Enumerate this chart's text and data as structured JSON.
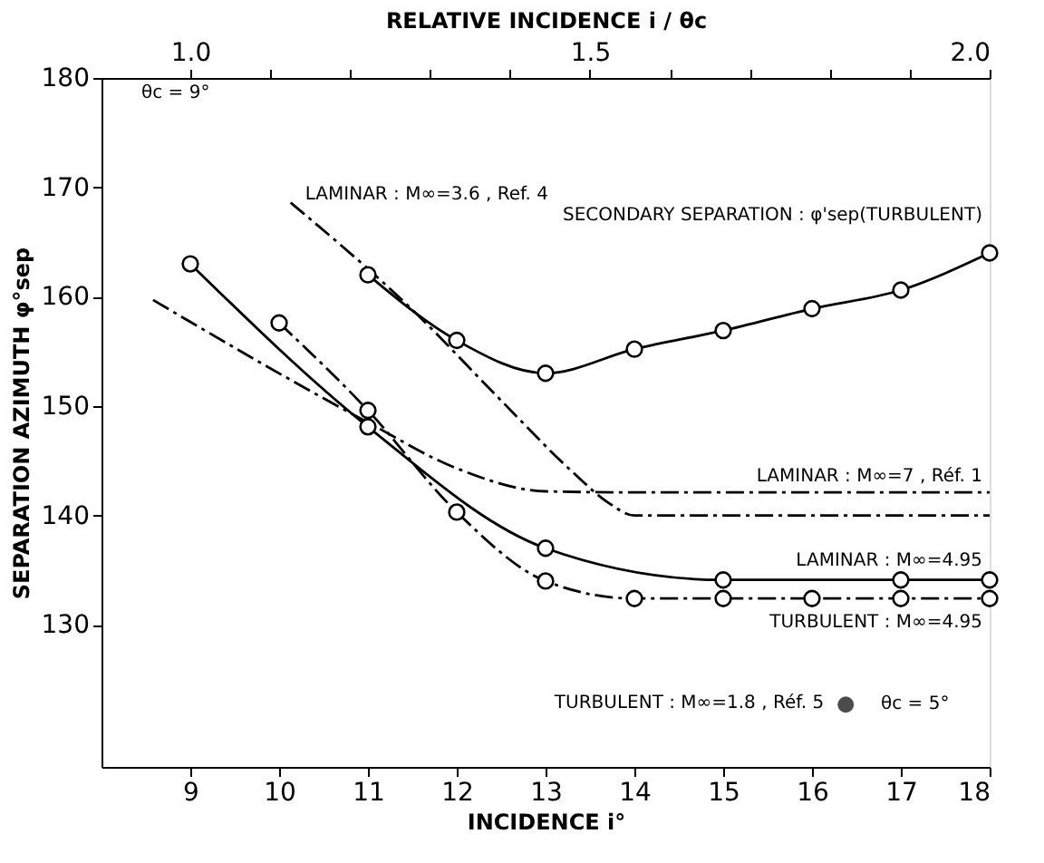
{
  "chart_data": {
    "type": "line",
    "xlabel": "INCIDENCE   i°",
    "ylabel": "SEPARATION  AZIMUTH  φ°sep",
    "x2label": "RELATIVE  INCIDENCE   i / θc",
    "xlim": [
      8,
      18
    ],
    "xticks": [
      9,
      10,
      11,
      12,
      13,
      14,
      15,
      16,
      17,
      18
    ],
    "ylim": [
      117,
      180
    ],
    "yticks": [
      130,
      140,
      150,
      160,
      170,
      180
    ],
    "x2lim": [
      0.8889,
      2.0
    ],
    "x2ticks": [
      {
        "value": 1,
        "label": "1.0"
      },
      {
        "value": 1.1,
        "label": null
      },
      {
        "value": 1.2,
        "label": null
      },
      {
        "value": 1.3,
        "label": null
      },
      {
        "value": 1.4,
        "label": null
      },
      1.5,
      {
        "value": 1.6,
        "label": null
      },
      {
        "value": 1.7,
        "label": null
      },
      {
        "value": 1.8,
        "label": null
      },
      {
        "value": 1.9,
        "label": null
      },
      {
        "value": 2,
        "label": "2.0"
      }
    ],
    "grid": false,
    "legend": false,
    "annotations": [
      "θc = 9°",
      "θc = 5°"
    ],
    "series": [
      {
        "name": "LAMINAR : M∞=3.6 , Ref. 4",
        "color": "#000000",
        "type": "line",
        "marker": "none",
        "line_style": "dashed",
        "x": [
          10.13,
          11.5,
          12.5,
          13.3,
          13.7,
          14,
          18
        ],
        "values": [
          168.6,
          158.8,
          150.5,
          144,
          141.2,
          140,
          140
        ]
      },
      {
        "name": "SECONDARY SEPARATION : φ'sep(TURBULENT)",
        "color": "#000000",
        "type": "line",
        "marker": "circle",
        "line_style": "solid",
        "x": [
          11,
          12,
          13,
          14,
          15,
          16,
          17,
          18
        ],
        "values": [
          162.0,
          156.0,
          153.0,
          155.2,
          156.9,
          158.9,
          160.6,
          164.0
        ]
      },
      {
        "name": "LAMINAR : M∞=7 , Réf. 1",
        "color": "#000000",
        "type": "line",
        "marker": "none",
        "line_style": "dashed",
        "x": [
          8.58,
          11,
          12,
          13,
          14,
          18
        ],
        "values": [
          159.7,
          148.5,
          144.3,
          142.2,
          142.1,
          142.1
        ]
      },
      {
        "name": "LAMINAR : M∞=4.95",
        "color": "#000000",
        "type": "line",
        "marker": "circle",
        "line_style": "solid",
        "x": [
          9,
          11,
          13,
          15,
          17,
          18
        ],
        "values": [
          163.0,
          148.1,
          137.0,
          134.1,
          134.1,
          134.1
        ]
      },
      {
        "name": "TURBULENT : M∞=4.95",
        "color": "#000000",
        "type": "line",
        "marker": "circle",
        "line_style": "dashed",
        "x": [
          10,
          11,
          12,
          13,
          14,
          15,
          16,
          17,
          18
        ],
        "values": [
          157.6,
          149.6,
          140.3,
          134.0,
          132.4,
          132.4,
          132.4,
          132.4,
          132.4
        ]
      },
      {
        "name": "TURBULENT : M∞=1.8 , Réf. 5",
        "color": "#000000",
        "type": "scatter",
        "marker": "circle",
        "x": [
          16.38
        ],
        "values": [
          122.7
        ]
      }
    ]
  }
}
